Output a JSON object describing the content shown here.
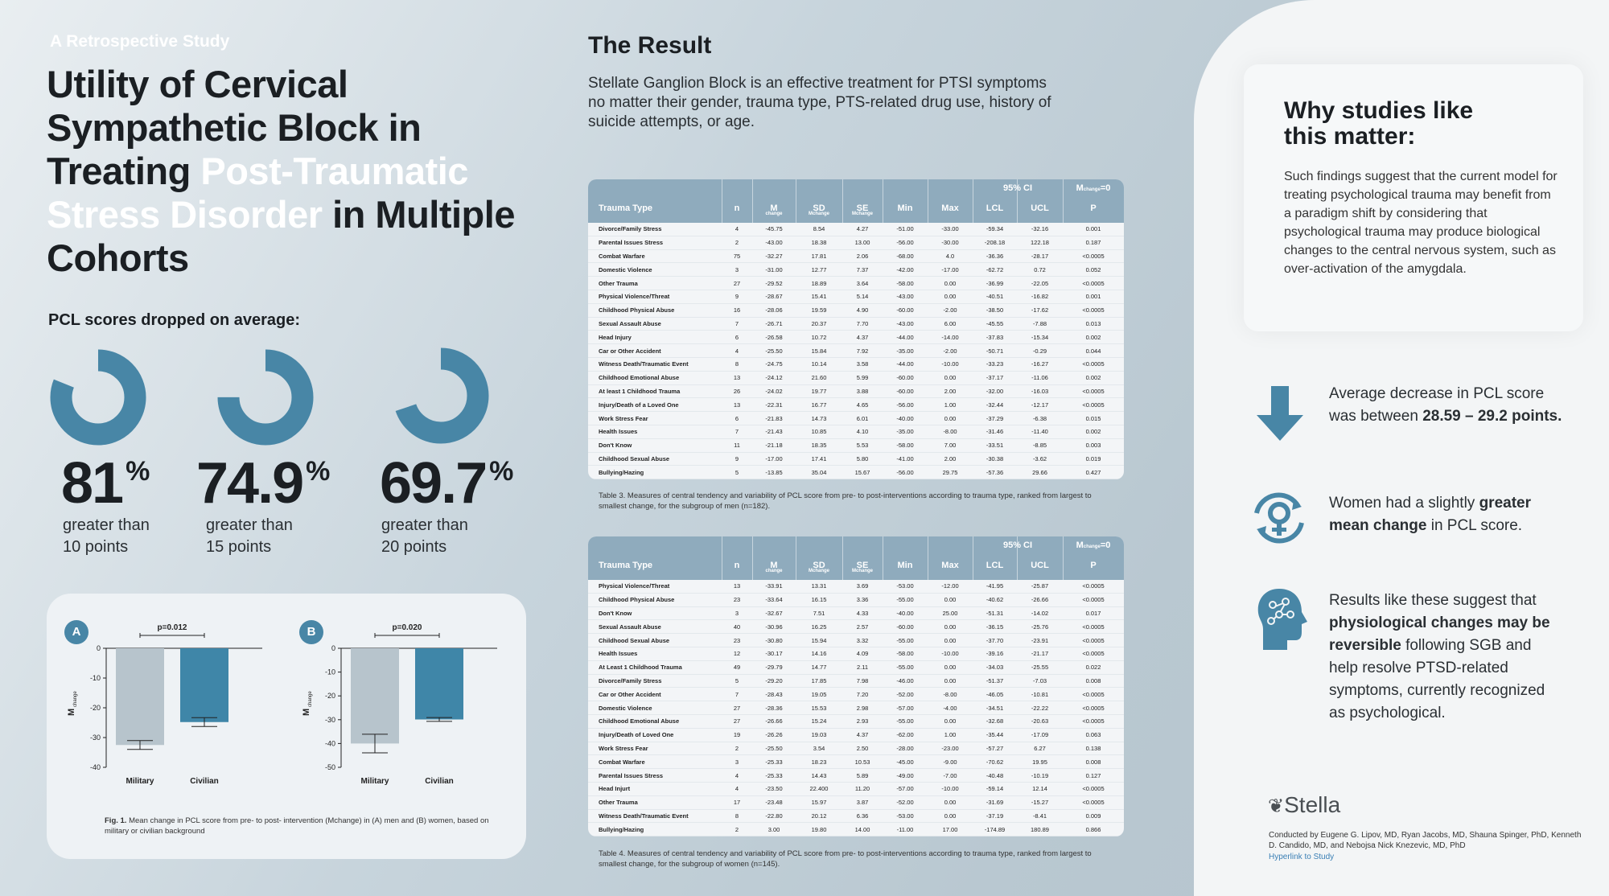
{
  "header": {
    "eyebrow": "A Retrospective Study",
    "title_parts": [
      "Utility of Cervical Sympathetic Block in Treating ",
      "Post-Traumatic Stress Disorder",
      " in Multiple Cohorts"
    ]
  },
  "pcl_heading": "PCL scores dropped on average:",
  "stats": [
    {
      "pct": "81",
      "sym": "%",
      "line1": "greater than",
      "line2": "10 points"
    },
    {
      "pct": "74.9",
      "sym": "%",
      "line1": "greater than",
      "line2": "15 points"
    },
    {
      "pct": "69.7",
      "sym": "%",
      "line1": "greater than",
      "line2": "20 points"
    }
  ],
  "colors": {
    "accent": "#4886a6",
    "military": "#b7c4cc",
    "civilian": "#3f86a8",
    "table_header": "#8fabbd"
  },
  "chart_data": [
    {
      "type": "bar",
      "panel": "A",
      "categories": [
        "Military",
        "Civilian"
      ],
      "values": [
        -32.5,
        -24.8
      ],
      "errors": [
        1.5,
        1.5
      ],
      "ylim": [
        -40,
        0
      ],
      "ticks": [
        "0",
        "-10",
        "-20",
        "-30",
        "-40"
      ],
      "ylabel": "M",
      "ylabel_sub": "change",
      "annotation": "p=0.012"
    },
    {
      "type": "bar",
      "panel": "B",
      "categories": [
        "Military",
        "Civilian"
      ],
      "values": [
        -40,
        -29.9
      ],
      "errors": [
        3.9,
        0.8
      ],
      "ylim": [
        -50,
        0
      ],
      "ticks": [
        "0",
        "-10",
        "-20",
        "-30",
        "-40",
        "-50"
      ],
      "ylabel": "M",
      "ylabel_sub": "change",
      "annotation": "p=0.020"
    }
  ],
  "fig_caption_bold": "Fig. 1.",
  "fig_caption": " Mean change in PCL score from pre- to post- intervention (Mchange) in (A) men and (B) women, based on military or civilian background",
  "result": {
    "heading": "The Result",
    "text": "Stellate Ganglion Block is an effective treatment for PTSI symptoms no matter their gender, trauma type, PTS-related drug use, history of suicide attempts, or age."
  },
  "table_headers": {
    "trauma": "Trauma Type",
    "n": "n",
    "m": "M",
    "m_sub": "change",
    "sd": "SD",
    "sd_sub": "Mchange",
    "se": "SE",
    "se_sub": "Mchange",
    "min": "Min",
    "max": "Max",
    "ci": "95% CI",
    "lcl": "LCL",
    "ucl": "UCL",
    "m0": "M",
    "m0_sub": "change",
    "m0_eq": "=0",
    "p": "P"
  },
  "table3": {
    "rows": [
      [
        "Divorce/Family Stress",
        "4",
        "-45.75",
        "8.54",
        "4.27",
        "-51.00",
        "-33.00",
        "-59.34",
        "-32.16",
        "0.001"
      ],
      [
        "Parental Issues Stress",
        "2",
        "-43.00",
        "18.38",
        "13.00",
        "-56.00",
        "-30.00",
        "-208.18",
        "122.18",
        "0.187"
      ],
      [
        "Combat Warfare",
        "75",
        "-32.27",
        "17.81",
        "2.06",
        "-68.00",
        "4.0",
        "-36.36",
        "-28.17",
        "<0.0005"
      ],
      [
        "Domestic Violence",
        "3",
        "-31.00",
        "12.77",
        "7.37",
        "-42.00",
        "-17.00",
        "-62.72",
        "0.72",
        "0.052"
      ],
      [
        "Other Trauma",
        "27",
        "-29.52",
        "18.89",
        "3.64",
        "-58.00",
        "0.00",
        "-36.99",
        "-22.05",
        "<0.0005"
      ],
      [
        "Physical Violence/Threat",
        "9",
        "-28.67",
        "15.41",
        "5.14",
        "-43.00",
        "0.00",
        "-40.51",
        "-16.82",
        "0.001"
      ],
      [
        "Childhood Physical Abuse",
        "16",
        "-28.06",
        "19.59",
        "4.90",
        "-60.00",
        "-2.00",
        "-38.50",
        "-17.62",
        "<0.0005"
      ],
      [
        "Sexual Assault Abuse",
        "7",
        "-26.71",
        "20.37",
        "7.70",
        "-43.00",
        "6.00",
        "-45.55",
        "-7.88",
        "0.013"
      ],
      [
        "Head Injury",
        "6",
        "-26.58",
        "10.72",
        "4.37",
        "-44.00",
        "-14.00",
        "-37.83",
        "-15.34",
        "0.002"
      ],
      [
        "Car or Other Accident",
        "4",
        "-25.50",
        "15.84",
        "7.92",
        "-35.00",
        "-2.00",
        "-50.71",
        "-0.29",
        "0.044"
      ],
      [
        "Witness Death/Traumatic Event",
        "8",
        "-24.75",
        "10.14",
        "3.58",
        "-44.00",
        "-10.00",
        "-33.23",
        "-16.27",
        "<0.0005"
      ],
      [
        "Childhood Emotional Abuse",
        "13",
        "-24.12",
        "21.60",
        "5.99",
        "-60.00",
        "0.00",
        "-37.17",
        "-11.06",
        "0.002"
      ],
      [
        "At least 1 Childhood Trauma",
        "26",
        "-24.02",
        "19.77",
        "3.88",
        "-60.00",
        "2.00",
        "-32.00",
        "-16.03",
        "<0.0005"
      ],
      [
        "Injury/Death of a Loved One",
        "13",
        "-22.31",
        "16.77",
        "4.65",
        "-56.00",
        "1.00",
        "-32.44",
        "-12.17",
        "<0.0005"
      ],
      [
        "Work Stress Fear",
        "6",
        "-21.83",
        "14.73",
        "6.01",
        "-40.00",
        "0.00",
        "-37.29",
        "-6.38",
        "0.015"
      ],
      [
        "Health Issues",
        "7",
        "-21.43",
        "10.85",
        "4.10",
        "-35.00",
        "-8.00",
        "-31.46",
        "-11.40",
        "0.002"
      ],
      [
        "Don't Know",
        "11",
        "-21.18",
        "18.35",
        "5.53",
        "-58.00",
        "7.00",
        "-33.51",
        "-8.85",
        "0.003"
      ],
      [
        "Childhood Sexual Abuse",
        "9",
        "-17.00",
        "17.41",
        "5.80",
        "-41.00",
        "2.00",
        "-30.38",
        "-3.62",
        "0.019"
      ],
      [
        "Bullying/Hazing",
        "5",
        "-13.85",
        "35.04",
        "15.67",
        "-56.00",
        "29.75",
        "-57.36",
        "29.66",
        "0.427"
      ]
    ],
    "caption": "Table 3. Measures of central tendency and variability of PCL score from pre- to post-interventions according to trauma type, ranked from largest to smallest change, for the subgroup of men (n=182)."
  },
  "table4": {
    "rows": [
      [
        "Physical Violence/Threat",
        "13",
        "-33.91",
        "13.31",
        "3.69",
        "-53.00",
        "-12.00",
        "-41.95",
        "-25.87",
        "<0.0005"
      ],
      [
        "Childhood Physical Abuse",
        "23",
        "-33.64",
        "16.15",
        "3.36",
        "-55.00",
        "0.00",
        "-40.62",
        "-26.66",
        "<0.0005"
      ],
      [
        "Don't Know",
        "3",
        "-32.67",
        "7.51",
        "4.33",
        "-40.00",
        "25.00",
        "-51.31",
        "-14.02",
        "0.017"
      ],
      [
        "Sexual Assault Abuse",
        "40",
        "-30.96",
        "16.25",
        "2.57",
        "-60.00",
        "0.00",
        "-36.15",
        "-25.76",
        "<0.0005"
      ],
      [
        "Childhood Sexual Abuse",
        "23",
        "-30.80",
        "15.94",
        "3.32",
        "-55.00",
        "0.00",
        "-37.70",
        "-23.91",
        "<0.0005"
      ],
      [
        "Health Issues",
        "12",
        "-30.17",
        "14.16",
        "4.09",
        "-58.00",
        "-10.00",
        "-39.16",
        "-21.17",
        "<0.0005"
      ],
      [
        "At Least 1 Childhood Trauma",
        "49",
        "-29.79",
        "14.77",
        "2.11",
        "-55.00",
        "0.00",
        "-34.03",
        "-25.55",
        "0.022"
      ],
      [
        "Divorce/Family Stress",
        "5",
        "-29.20",
        "17.85",
        "7.98",
        "-46.00",
        "0.00",
        "-51.37",
        "-7.03",
        "0.008"
      ],
      [
        "Car or Other Accident",
        "7",
        "-28.43",
        "19.05",
        "7.20",
        "-52.00",
        "-8.00",
        "-46.05",
        "-10.81",
        "<0.0005"
      ],
      [
        "Domestic Violence",
        "27",
        "-28.36",
        "15.53",
        "2.98",
        "-57.00",
        "-4.00",
        "-34.51",
        "-22.22",
        "<0.0005"
      ],
      [
        "Childhood Emotional Abuse",
        "27",
        "-26.66",
        "15.24",
        "2.93",
        "-55.00",
        "0.00",
        "-32.68",
        "-20.63",
        "<0.0005"
      ],
      [
        "Injury/Death of Loved One",
        "19",
        "-26.26",
        "19.03",
        "4.37",
        "-62.00",
        "1.00",
        "-35.44",
        "-17.09",
        "0.063"
      ],
      [
        "Work Stress Fear",
        "2",
        "-25.50",
        "3.54",
        "2.50",
        "-28.00",
        "-23.00",
        "-57.27",
        "6.27",
        "0.138"
      ],
      [
        "Combat Warfare",
        "3",
        "-25.33",
        "18.23",
        "10.53",
        "-45.00",
        "-9.00",
        "-70.62",
        "19.95",
        "0.008"
      ],
      [
        "Parental Issues Stress",
        "4",
        "-25.33",
        "14.43",
        "5.89",
        "-49.00",
        "-7.00",
        "-40.48",
        "-10.19",
        "0.127"
      ],
      [
        "Head Injurt",
        "4",
        "-23.50",
        "22.400",
        "11.20",
        "-57.00",
        "-10.00",
        "-59.14",
        "12.14",
        "<0.0005"
      ],
      [
        "Other Trauma",
        "17",
        "-23.48",
        "15.97",
        "3.87",
        "-52.00",
        "0.00",
        "-31.69",
        "-15.27",
        "<0.0005"
      ],
      [
        "Witness Death/Traumatic Event",
        "8",
        "-22.80",
        "20.12",
        "6.36",
        "-53.00",
        "0.00",
        "-37.19",
        "-8.41",
        "0.009"
      ],
      [
        "Bullying/Hazing",
        "2",
        "3.00",
        "19.80",
        "14.00",
        "-11.00",
        "17.00",
        "-174.89",
        "180.89",
        "0.866"
      ]
    ],
    "caption": "Table 4. Measures of central tendency and variability of PCL score from pre- to post-interventions according to trauma type, ranked from largest to smallest change, for the subgroup of women (n=145)."
  },
  "why": {
    "heading_line1": "Why studies like",
    "heading_line2": "this matter:",
    "text": "Such findings suggest that the current model for treating psychological trauma may benefit from a paradigm shift by considering that psychological trauma may produce biological changes to the central nervous system, such as over-activation of the amygdala."
  },
  "bullets": {
    "b1_pre": "Average decrease in PCL score was between ",
    "b1_bold": "28.59 – 29.2 points.",
    "b2_pre": "Women had a slightly ",
    "b2_bold": "greater mean change",
    "b2_post": " in PCL score.",
    "b3_pre": "Results like these suggest that ",
    "b3_bold": "physiological changes may be reversible",
    "b3_post": " following SGB and help resolve PTSD-related symptoms, currently recognized as psychological."
  },
  "brand": "Stella",
  "credit": "Conducted by Eugene G. Lipov, MD, Ryan Jacobs, MD, Shauna Spinger, PhD, Kenneth D. Candido, MD, and Nebojsa Nick Knezevic, MD, PhD",
  "link": "Hyperlink to Study"
}
